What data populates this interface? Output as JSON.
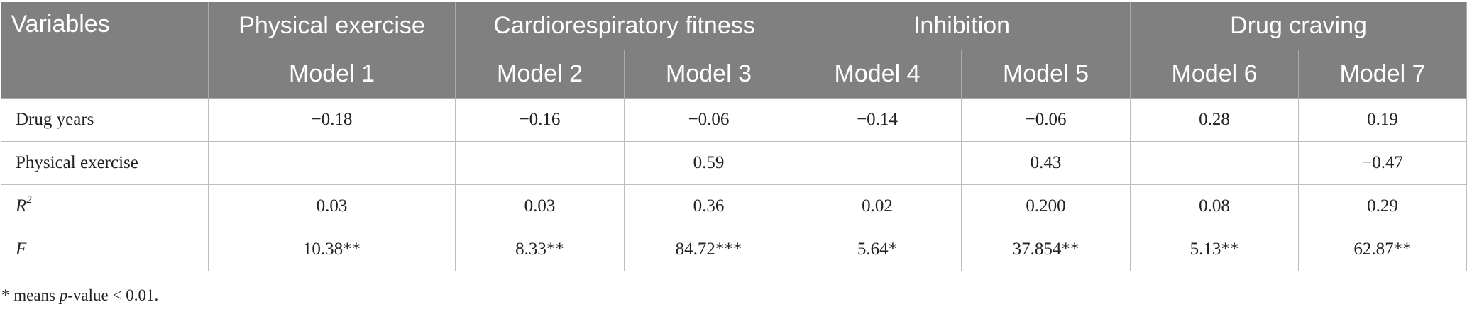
{
  "table": {
    "header_row1": {
      "variables": "Variables",
      "groups": [
        "Physical exercise",
        "Cardiorespiratory fitness",
        "Inhibition",
        "Drug craving"
      ]
    },
    "header_row2": [
      "Model 1",
      "Model 2",
      "Model 3",
      "Model 4",
      "Model 5",
      "Model 6",
      "Model 7"
    ],
    "rows": [
      {
        "label": "Drug years",
        "cells": [
          "−0.18",
          "−0.16",
          "−0.06",
          "−0.14",
          "−0.06",
          "0.28",
          "0.19"
        ]
      },
      {
        "label": "Physical exercise",
        "cells": [
          "",
          "",
          "0.59",
          "",
          "0.43",
          "",
          "−0.47"
        ]
      },
      {
        "label": "R",
        "label_sup": "2",
        "cells": [
          "0.03",
          "0.03",
          "0.36",
          "0.02",
          "0.200",
          "0.08",
          "0.29"
        ]
      },
      {
        "label": "F",
        "cells": [
          "10.38**",
          "8.33**",
          "84.72***",
          "5.64*",
          "37.854**",
          "5.13**",
          "62.87**"
        ]
      }
    ]
  },
  "footnote": {
    "prefix": "* means ",
    "italic": "p",
    "suffix": "-value < 0.01."
  }
}
